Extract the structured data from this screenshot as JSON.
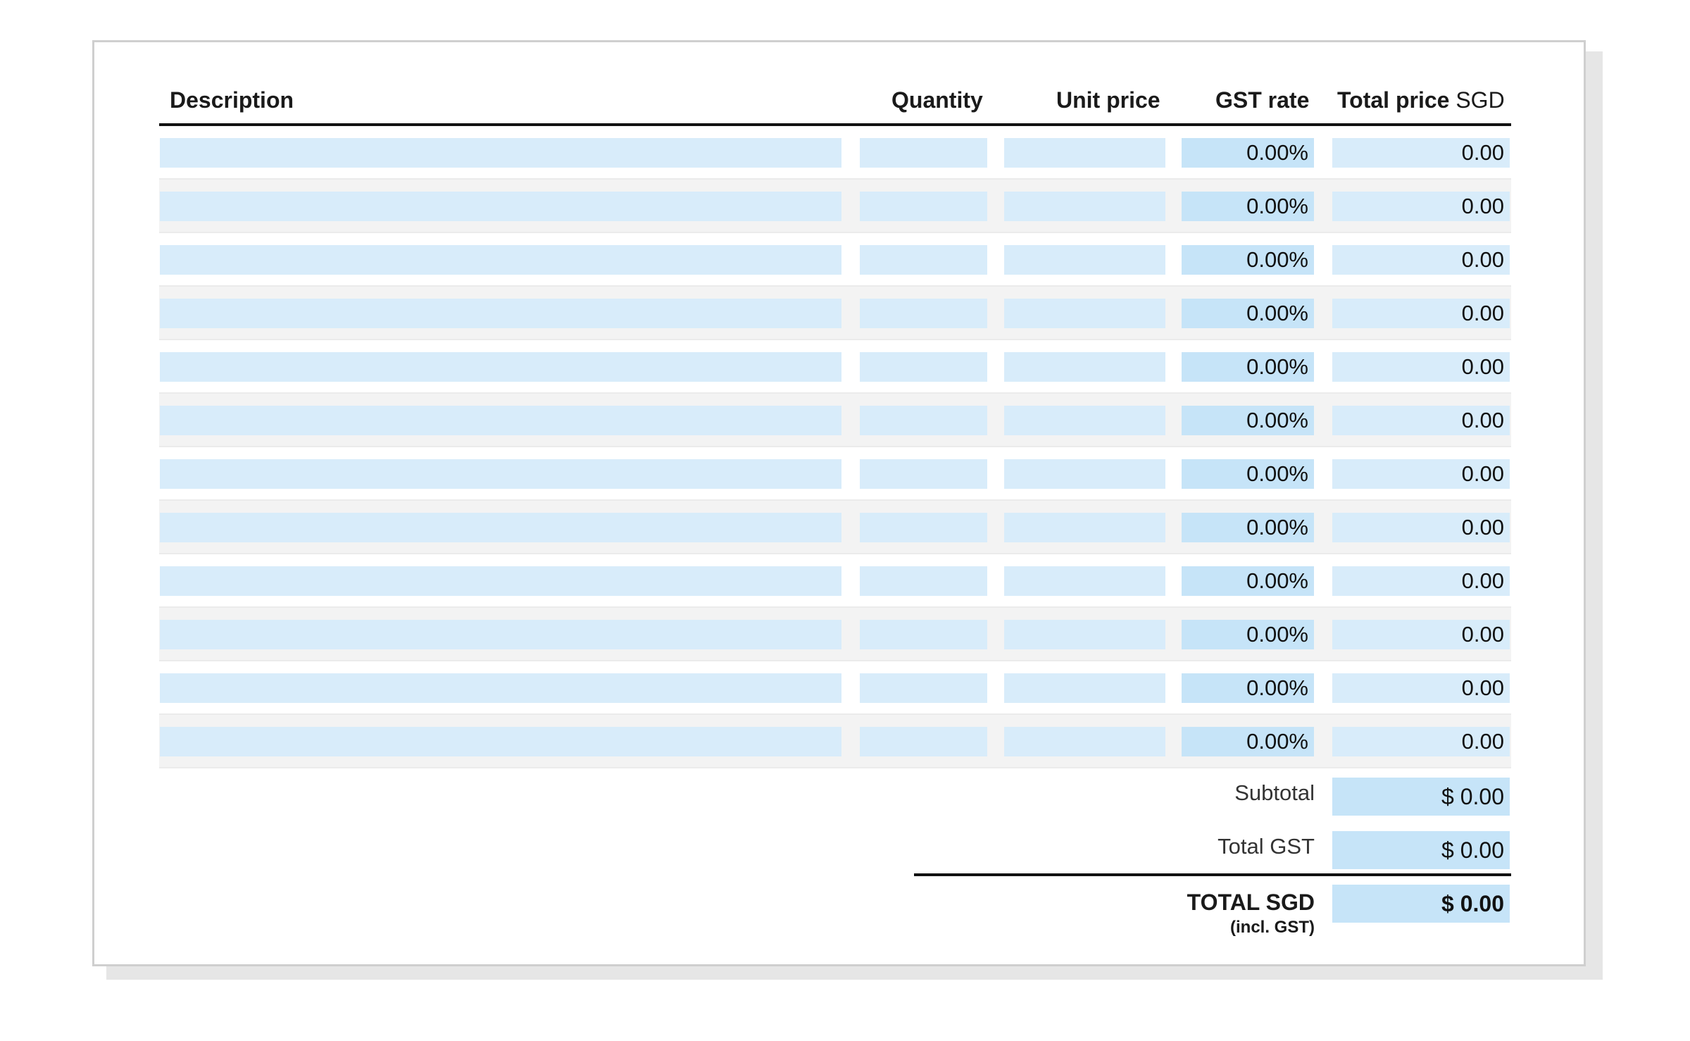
{
  "columns": {
    "description": "Description",
    "quantity": "Quantity",
    "unit_price": "Unit price",
    "gst_rate": "GST rate",
    "total_price_bold": "Total price",
    "total_price_currency": "SGD"
  },
  "rows": [
    {
      "description": "",
      "quantity": "",
      "unit_price": "",
      "gst_rate": "0.00%",
      "total_price": "0.00"
    },
    {
      "description": "",
      "quantity": "",
      "unit_price": "",
      "gst_rate": "0.00%",
      "total_price": "0.00"
    },
    {
      "description": "",
      "quantity": "",
      "unit_price": "",
      "gst_rate": "0.00%",
      "total_price": "0.00"
    },
    {
      "description": "",
      "quantity": "",
      "unit_price": "",
      "gst_rate": "0.00%",
      "total_price": "0.00"
    },
    {
      "description": "",
      "quantity": "",
      "unit_price": "",
      "gst_rate": "0.00%",
      "total_price": "0.00"
    },
    {
      "description": "",
      "quantity": "",
      "unit_price": "",
      "gst_rate": "0.00%",
      "total_price": "0.00"
    },
    {
      "description": "",
      "quantity": "",
      "unit_price": "",
      "gst_rate": "0.00%",
      "total_price": "0.00"
    },
    {
      "description": "",
      "quantity": "",
      "unit_price": "",
      "gst_rate": "0.00%",
      "total_price": "0.00"
    },
    {
      "description": "",
      "quantity": "",
      "unit_price": "",
      "gst_rate": "0.00%",
      "total_price": "0.00"
    },
    {
      "description": "",
      "quantity": "",
      "unit_price": "",
      "gst_rate": "0.00%",
      "total_price": "0.00"
    },
    {
      "description": "",
      "quantity": "",
      "unit_price": "",
      "gst_rate": "0.00%",
      "total_price": "0.00"
    },
    {
      "description": "",
      "quantity": "",
      "unit_price": "",
      "gst_rate": "0.00%",
      "total_price": "0.00"
    }
  ],
  "summary": {
    "subtotal_label": "Subtotal",
    "subtotal_value": "$ 0.00",
    "total_gst_label": "Total GST",
    "total_gst_value": "$ 0.00",
    "total_label": "TOTAL SGD",
    "total_sublabel": "(incl. GST)",
    "total_value": "$ 0.00"
  },
  "colors": {
    "field_fill": "#d8ecfa",
    "field_fill_computed": "#c6e4f8",
    "row_alt": "#f3f3f3",
    "rule": "#111111"
  }
}
